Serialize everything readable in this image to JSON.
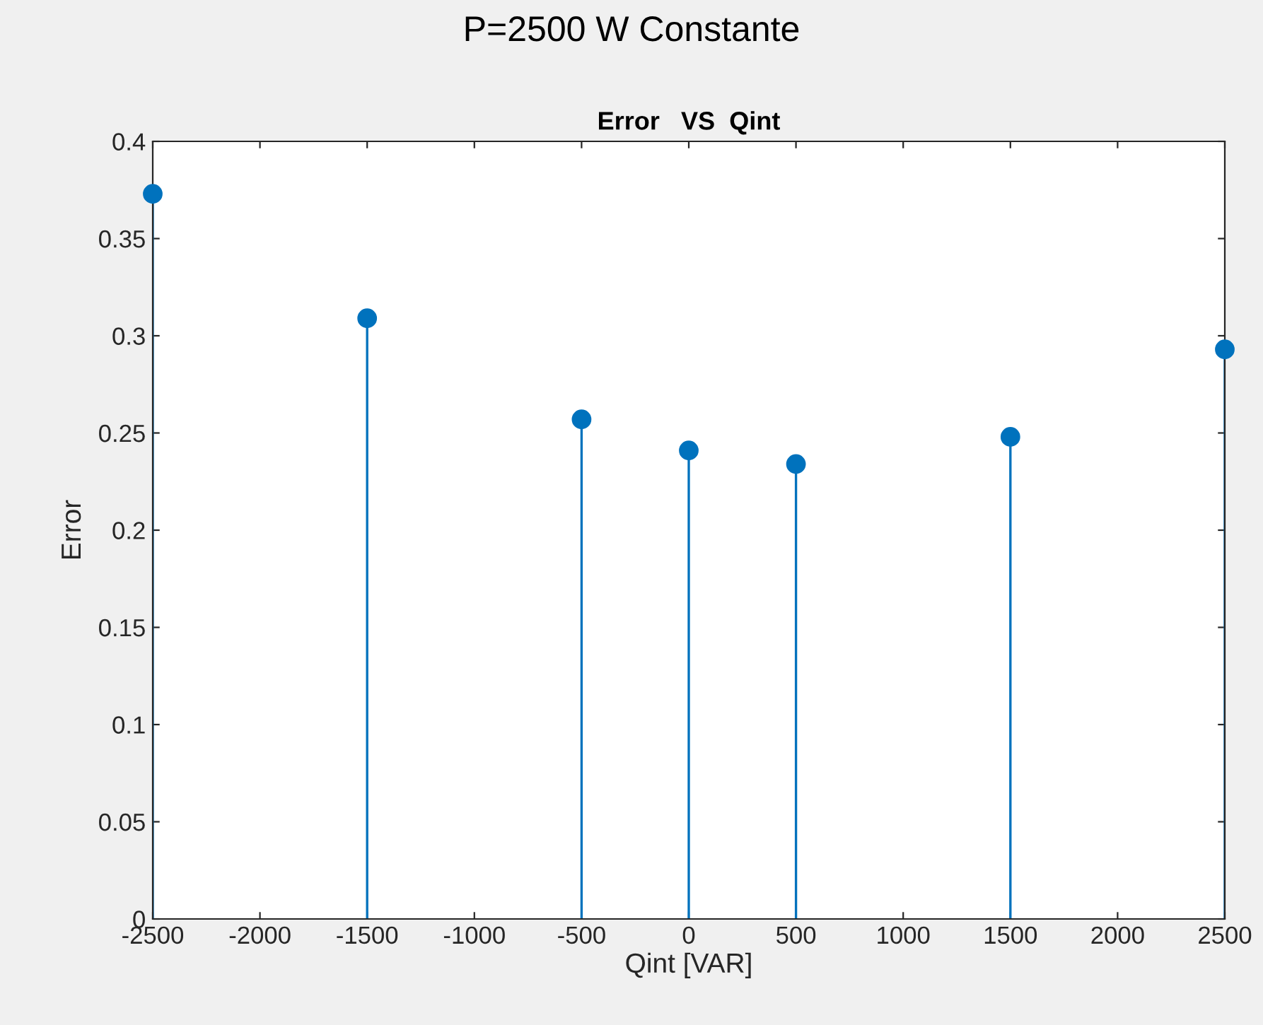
{
  "chart_data": {
    "type": "lollipop",
    "title": "P=2500 W Constante",
    "subtitle": "Error   VS  Qint",
    "xlabel": "Qint [VAR]",
    "ylabel": "Error",
    "x": [
      -2500,
      -1500,
      -500,
      0,
      500,
      1500,
      2500
    ],
    "values": [
      0.373,
      0.309,
      0.257,
      0.241,
      0.234,
      0.248,
      0.293
    ],
    "color": "#0072bd",
    "marker": "circle",
    "xlim": [
      -2500,
      2500
    ],
    "xticks": [
      -2500,
      -2000,
      -1500,
      -1000,
      -500,
      0,
      500,
      1000,
      1500,
      2000,
      2500
    ],
    "ylim": [
      0,
      0.4
    ],
    "yticks": [
      0,
      0.05,
      0.1,
      0.15,
      0.2,
      0.25,
      0.3,
      0.35,
      0.4
    ],
    "grid": false,
    "legend": false
  }
}
